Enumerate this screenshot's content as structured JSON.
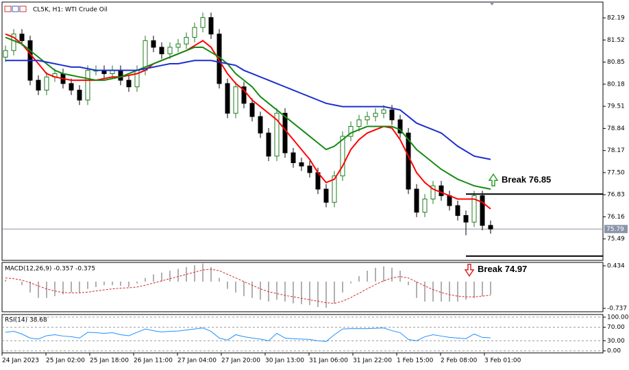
{
  "chart_data": [
    {
      "type": "candlestick",
      "title": "CL5K, H1: WTI Crude Oil",
      "ylim": [
        74.84,
        82.67
      ],
      "yticks": [
        82.19,
        81.52,
        80.85,
        80.18,
        79.51,
        78.84,
        78.17,
        {
          "value": 77.5,
          "label": "77.50"
        },
        76.83,
        76.16,
        75.49
      ],
      "current_price": 75.79,
      "up_color": "#1e7b1e",
      "down_color": "#000000",
      "xtick_labels": [
        "24 Jan 2023",
        "25 Jan 02:00",
        "25 Jan 18:00",
        "26 Jan 11:00",
        "27 Jan 04:00",
        "27 Jan 20:00",
        "30 Jan 13:00",
        "31 Jan 06:00",
        "31 Jan 22:00",
        "1 Feb 15:00",
        "2 Feb 08:00",
        "3 Feb 01:00"
      ],
      "candles": [
        [
          81.0,
          81.35,
          80.85,
          81.2
        ],
        [
          81.2,
          81.85,
          81.05,
          81.7
        ],
        [
          81.7,
          81.85,
          81.35,
          81.5
        ],
        [
          81.5,
          81.65,
          80.15,
          80.3
        ],
        [
          80.3,
          80.45,
          79.85,
          80.0
        ],
        [
          80.0,
          80.55,
          79.85,
          80.4
        ],
        [
          80.4,
          80.65,
          80.25,
          80.5
        ],
        [
          80.5,
          80.65,
          80.05,
          80.2
        ],
        [
          80.2,
          80.35,
          79.85,
          80.0
        ],
        [
          80.0,
          80.15,
          79.55,
          79.7
        ],
        [
          79.7,
          80.75,
          79.55,
          80.6
        ],
        [
          80.6,
          80.75,
          80.45,
          80.6
        ],
        [
          80.6,
          80.75,
          80.35,
          80.5
        ],
        [
          80.5,
          80.75,
          80.35,
          80.6
        ],
        [
          80.6,
          80.75,
          80.15,
          80.3
        ],
        [
          80.3,
          80.45,
          79.95,
          80.1
        ],
        [
          80.1,
          80.75,
          79.95,
          80.6
        ],
        [
          80.6,
          81.65,
          80.45,
          81.5
        ],
        [
          81.5,
          81.65,
          81.15,
          81.3
        ],
        [
          81.3,
          81.45,
          80.95,
          81.1
        ],
        [
          81.1,
          81.45,
          80.95,
          81.3
        ],
        [
          81.3,
          81.55,
          81.15,
          81.4
        ],
        [
          81.4,
          81.75,
          81.25,
          81.6
        ],
        [
          81.6,
          82.05,
          81.45,
          81.9
        ],
        [
          81.9,
          82.35,
          81.75,
          82.2
        ],
        [
          82.2,
          82.35,
          81.55,
          81.7
        ],
        [
          81.7,
          81.85,
          80.05,
          80.2
        ],
        [
          80.2,
          80.35,
          79.15,
          79.3
        ],
        [
          79.3,
          80.25,
          79.15,
          80.1
        ],
        [
          80.1,
          80.25,
          79.45,
          79.6
        ],
        [
          79.6,
          79.75,
          79.05,
          79.2
        ],
        [
          79.2,
          79.35,
          78.55,
          78.7
        ],
        [
          78.7,
          78.85,
          77.85,
          78.0
        ],
        [
          78.0,
          79.45,
          77.85,
          79.3
        ],
        [
          79.3,
          79.45,
          77.95,
          78.1
        ],
        [
          78.1,
          78.25,
          77.65,
          77.8
        ],
        [
          77.8,
          77.95,
          77.55,
          77.7
        ],
        [
          77.7,
          77.85,
          77.35,
          77.5
        ],
        [
          77.5,
          77.65,
          76.85,
          77.0
        ],
        [
          77.0,
          77.15,
          76.45,
          76.6
        ],
        [
          76.6,
          77.55,
          76.45,
          77.4
        ],
        [
          77.4,
          78.75,
          77.25,
          78.6
        ],
        [
          78.6,
          79.05,
          78.45,
          78.9
        ],
        [
          78.9,
          79.25,
          78.75,
          79.1
        ],
        [
          79.1,
          79.35,
          78.95,
          79.2
        ],
        [
          79.2,
          79.45,
          79.05,
          79.3
        ],
        [
          79.3,
          79.55,
          79.15,
          79.4
        ],
        [
          79.4,
          79.55,
          78.95,
          79.1
        ],
        [
          79.1,
          79.25,
          78.55,
          78.7
        ],
        [
          78.7,
          78.85,
          76.85,
          77.0
        ],
        [
          77.0,
          77.15,
          76.15,
          76.3
        ],
        [
          76.3,
          76.85,
          76.15,
          76.7
        ],
        [
          76.7,
          77.25,
          76.55,
          77.1
        ],
        [
          77.1,
          77.25,
          76.65,
          76.8
        ],
        [
          76.8,
          76.95,
          76.35,
          76.5
        ],
        [
          76.5,
          76.65,
          76.05,
          76.2
        ],
        [
          76.2,
          76.35,
          75.6,
          76.0
        ],
        [
          76.0,
          76.95,
          75.85,
          76.8
        ],
        [
          76.8,
          76.95,
          75.75,
          75.9
        ],
        [
          75.9,
          76.05,
          75.65,
          75.79
        ]
      ],
      "series": [
        {
          "color": "#ff0000",
          "values": [
            81.7,
            81.6,
            81.4,
            81.1,
            80.8,
            80.5,
            80.4,
            80.35,
            80.3,
            80.3,
            80.3,
            80.3,
            80.35,
            80.4,
            80.4,
            80.45,
            80.5,
            80.6,
            80.8,
            80.9,
            81.0,
            81.1,
            81.2,
            81.35,
            81.5,
            81.3,
            80.9,
            80.5,
            80.2,
            80.0,
            79.7,
            79.5,
            79.3,
            79.1,
            78.8,
            78.5,
            78.2,
            77.9,
            77.5,
            77.2,
            77.3,
            77.7,
            78.2,
            78.5,
            78.7,
            78.8,
            78.9,
            78.85,
            78.5,
            78.0,
            77.5,
            77.2,
            77.0,
            76.9,
            76.8,
            76.7,
            76.7,
            76.7,
            76.6,
            76.4
          ]
        },
        {
          "color": "#138a13",
          "values": [
            81.6,
            81.5,
            81.4,
            81.2,
            81.0,
            80.8,
            80.6,
            80.5,
            80.45,
            80.4,
            80.35,
            80.3,
            80.3,
            80.35,
            80.4,
            80.5,
            80.6,
            80.7,
            80.8,
            80.9,
            81.0,
            81.1,
            81.2,
            81.3,
            81.3,
            81.15,
            81.0,
            80.8,
            80.5,
            80.3,
            80.1,
            79.8,
            79.6,
            79.4,
            79.2,
            79.0,
            78.8,
            78.6,
            78.4,
            78.2,
            78.3,
            78.5,
            78.7,
            78.8,
            78.9,
            78.9,
            78.9,
            78.9,
            78.8,
            78.5,
            78.2,
            78.0,
            77.8,
            77.6,
            77.45,
            77.3,
            77.2,
            77.1,
            77.05,
            77.0
          ]
        },
        {
          "color": "#1c2fcc",
          "values": [
            80.9,
            80.9,
            80.9,
            80.9,
            80.9,
            80.85,
            80.8,
            80.75,
            80.7,
            80.7,
            80.65,
            80.6,
            80.6,
            80.6,
            80.6,
            80.6,
            80.6,
            80.65,
            80.7,
            80.75,
            80.8,
            80.8,
            80.85,
            80.9,
            80.9,
            80.9,
            80.85,
            80.8,
            80.75,
            80.6,
            80.5,
            80.4,
            80.3,
            80.2,
            80.1,
            80.0,
            79.9,
            79.8,
            79.7,
            79.6,
            79.55,
            79.5,
            79.5,
            79.5,
            79.5,
            79.5,
            79.5,
            79.45,
            79.4,
            79.2,
            79.0,
            78.9,
            78.8,
            78.7,
            78.5,
            78.3,
            78.15,
            78.0,
            77.95,
            77.9
          ]
        }
      ],
      "levels": [
        {
          "value": 76.85,
          "label": "Break 76.85",
          "color": "#2ca02c"
        },
        {
          "value": 74.97,
          "label": "Break 74.97",
          "color": "#d62728"
        }
      ]
    },
    {
      "type": "macd",
      "title": "MACD(12,26,9) -0.357 -0.375",
      "ylim": [
        -0.831,
        0.528
      ],
      "yticks": [
        0.434,
        -0.737
      ],
      "histogram_color": "#b0b0b0",
      "signal_color": "#d62728",
      "histogram": [
        0.05,
        0.0,
        -0.1,
        -0.3,
        -0.45,
        -0.45,
        -0.4,
        -0.35,
        -0.3,
        -0.3,
        -0.2,
        -0.15,
        -0.1,
        -0.1,
        -0.12,
        -0.15,
        -0.05,
        0.1,
        0.2,
        0.25,
        0.3,
        0.35,
        0.4,
        0.45,
        0.5,
        0.4,
        0.1,
        -0.2,
        -0.3,
        -0.4,
        -0.45,
        -0.5,
        -0.55,
        -0.5,
        -0.55,
        -0.6,
        -0.62,
        -0.65,
        -0.7,
        -0.72,
        -0.6,
        -0.3,
        -0.05,
        0.15,
        0.3,
        0.38,
        0.42,
        0.38,
        0.3,
        -0.1,
        -0.45,
        -0.55,
        -0.55,
        -0.55,
        -0.55,
        -0.55,
        -0.5,
        -0.45,
        -0.4,
        -0.357
      ],
      "signal": [
        0.1,
        0.08,
        0.04,
        -0.03,
        -0.12,
        -0.2,
        -0.26,
        -0.3,
        -0.31,
        -0.31,
        -0.29,
        -0.26,
        -0.23,
        -0.2,
        -0.18,
        -0.17,
        -0.15,
        -0.1,
        -0.04,
        0.02,
        0.08,
        0.14,
        0.2,
        0.26,
        0.32,
        0.34,
        0.3,
        0.2,
        0.1,
        0.0,
        -0.1,
        -0.2,
        -0.28,
        -0.33,
        -0.38,
        -0.42,
        -0.46,
        -0.5,
        -0.54,
        -0.58,
        -0.6,
        -0.54,
        -0.44,
        -0.32,
        -0.2,
        -0.08,
        0.02,
        0.1,
        0.14,
        0.1,
        -0.01,
        -0.12,
        -0.22,
        -0.3,
        -0.36,
        -0.4,
        -0.42,
        -0.42,
        -0.4,
        -0.375
      ]
    },
    {
      "type": "line",
      "title": "RSI(14) 38.68",
      "ylim": [
        -6,
        108
      ],
      "yticks": [
        {
          "value": 100,
          "label": "100.00"
        },
        {
          "value": 70,
          "label": "70.00"
        },
        {
          "value": 30,
          "label": "30.00"
        },
        {
          "value": 0,
          "label": "0.00"
        }
      ],
      "color": "#1e90ff",
      "values": [
        55,
        58,
        50,
        38,
        35,
        45,
        48,
        44,
        42,
        38,
        55,
        54,
        52,
        54,
        48,
        45,
        55,
        65,
        60,
        56,
        58,
        59,
        62,
        65,
        68,
        58,
        38,
        32,
        48,
        42,
        38,
        35,
        30,
        52,
        38,
        36,
        35,
        34,
        30,
        28,
        48,
        65,
        66,
        66,
        66,
        67,
        68,
        60,
        54,
        34,
        30,
        42,
        48,
        44,
        40,
        38,
        36,
        50,
        40,
        38.68
      ]
    }
  ]
}
